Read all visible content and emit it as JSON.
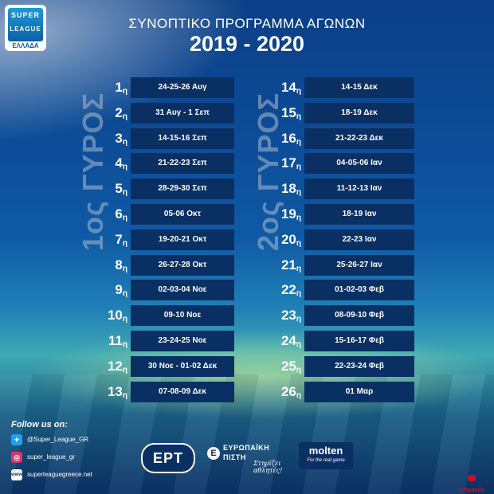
{
  "logo": {
    "line1": "SUPER",
    "line2": "LEAGUE",
    "line3": "ΕΛΛΑΔΑ"
  },
  "header": {
    "subtitle": "ΣΥΝΟΠΤΙΚΟ ΠΡΟΓΡΑΜΜΑ ΑΓΩΝΩΝ",
    "season": "2019 - 2020"
  },
  "rounds": {
    "first": "1ος ΓΥΡΟΣ",
    "second": "2ος ΓΥΡΟΣ"
  },
  "suffix": "η",
  "first_round": [
    {
      "num": "1",
      "date": "24-25-26 Αυγ"
    },
    {
      "num": "2",
      "date": "31 Αυγ - 1 Σεπ"
    },
    {
      "num": "3",
      "date": "14-15-16 Σεπ"
    },
    {
      "num": "4",
      "date": "21-22-23 Σεπ"
    },
    {
      "num": "5",
      "date": "28-29-30 Σεπ"
    },
    {
      "num": "6",
      "date": "05-06 Οκτ"
    },
    {
      "num": "7",
      "date": "19-20-21 Οκτ"
    },
    {
      "num": "8",
      "date": "26-27-28 Οκτ"
    },
    {
      "num": "9",
      "date": "02-03-04 Νοε"
    },
    {
      "num": "10",
      "date": "09-10 Νοε"
    },
    {
      "num": "11",
      "date": "23-24-25 Νοε"
    },
    {
      "num": "12",
      "date": "30 Νοε - 01-02 Δεκ"
    },
    {
      "num": "13",
      "date": "07-08-09 Δεκ"
    }
  ],
  "second_round": [
    {
      "num": "14",
      "date": "14-15 Δεκ"
    },
    {
      "num": "15",
      "date": "18-19 Δεκ"
    },
    {
      "num": "16",
      "date": "21-22-23 Δεκ"
    },
    {
      "num": "17",
      "date": "04-05-06 Ιαν"
    },
    {
      "num": "18",
      "date": "11-12-13 Ιαν"
    },
    {
      "num": "19",
      "date": "18-19 Ιαν"
    },
    {
      "num": "20",
      "date": "22-23 Ιαν"
    },
    {
      "num": "21",
      "date": "25-26-27 Ιαν"
    },
    {
      "num": "22",
      "date": "01-02-03 Φεβ"
    },
    {
      "num": "23",
      "date": "08-09-10 Φεβ"
    },
    {
      "num": "24",
      "date": "15-16-17 Φεβ"
    },
    {
      "num": "25",
      "date": "22-23-24 Φεβ"
    },
    {
      "num": "26",
      "date": "01 Μαρ"
    }
  ],
  "footer": {
    "follow": "Follow us on:",
    "twitter": "@Super_League_GR",
    "instagram": "super_league_gr",
    "website": "superleaguegreece.net",
    "www_icon": "www"
  },
  "sponsors": {
    "ert": "ΕΡΤ",
    "ep_line1": "ΕΥΡΩΠΑΪΚΗ",
    "ep_line2": "ΠΙΣΤΗ",
    "ep_tag": "Στηρίζει αθλητές!",
    "molten": "molten",
    "molten_tag": "For the real game",
    "redpanda": "redpanda"
  },
  "colors": {
    "row_bg": "#0a2f63",
    "accent": "#1d9ad6",
    "brand_red": "#c8102e"
  }
}
